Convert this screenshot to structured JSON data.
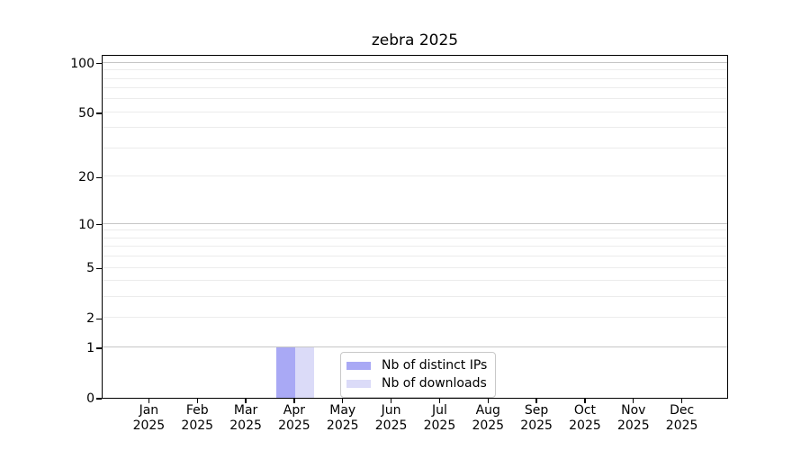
{
  "title": "zebra 2025",
  "chart_data": {
    "type": "bar",
    "title": "zebra 2025",
    "x_axis": {
      "months": [
        "Jan",
        "Feb",
        "Mar",
        "Apr",
        "May",
        "Jun",
        "Jul",
        "Aug",
        "Sep",
        "Oct",
        "Nov",
        "Dec"
      ],
      "year_label": "2025"
    },
    "y_axis": {
      "scale": "log1p",
      "ylim": [
        0,
        113
      ],
      "tick_values": [
        0,
        1,
        2,
        5,
        10,
        20,
        50,
        100
      ],
      "major_gridlines": [
        1,
        10,
        100
      ],
      "minor_gridlines": [
        2,
        3,
        4,
        5,
        6,
        7,
        8,
        9,
        20,
        30,
        40,
        50,
        60,
        70,
        80,
        90
      ],
      "grid": true
    },
    "series": [
      {
        "name": "Nb of distinct IPs",
        "color": "#a9a9f5",
        "values": [
          0,
          0,
          0,
          1,
          0,
          0,
          0,
          0,
          0,
          0,
          0,
          0
        ]
      },
      {
        "name": "Nb of downloads",
        "color": "#dbdbf8",
        "values": [
          0,
          0,
          0,
          1,
          0,
          0,
          0,
          0,
          0,
          0,
          0,
          0
        ]
      }
    ],
    "legend_position": "inside-bottom-center",
    "colors": {
      "major_grid": "#c6c6c6",
      "minor_grid": "#ececec",
      "spine": "#000000",
      "background": "#ffffff"
    }
  }
}
